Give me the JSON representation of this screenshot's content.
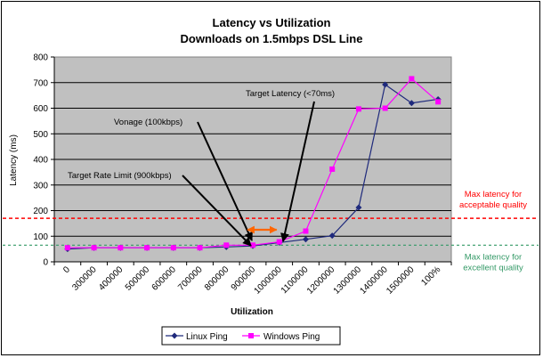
{
  "chart_data": {
    "type": "line",
    "title": "Latency vs Utilization",
    "subtitle": "Downloads on 1.5mbps DSL Line",
    "xlabel": "Utilization",
    "ylabel": "Latency (ms)",
    "ylim": [
      0,
      800
    ],
    "yticks": [
      "0",
      "100",
      "200",
      "300",
      "400",
      "500",
      "600",
      "700",
      "800"
    ],
    "categories": [
      "0",
      "300000",
      "400000",
      "500000",
      "600000",
      "700000",
      "800000",
      "900000",
      "1000000",
      "1100000",
      "1200000",
      "1300000",
      "1400000",
      "1500000",
      "100%"
    ],
    "grid": true,
    "legend_position": "bottom",
    "series": [
      {
        "name": "Linux Ping",
        "color": "#1F2A7C",
        "marker": "diamond",
        "values": [
          50,
          55,
          55,
          55,
          55,
          55,
          58,
          62,
          75,
          88,
          102,
          212,
          692,
          620,
          635
        ]
      },
      {
        "name": "Windows Ping",
        "color": "#FF00FF",
        "marker": "square",
        "values": [
          55,
          55,
          55,
          55,
          55,
          55,
          65,
          65,
          78,
          120,
          362,
          597,
          600,
          715,
          625
        ]
      }
    ],
    "reference_lines": [
      {
        "value": 170,
        "color": "#FF0000",
        "label_lines": [
          "Max latency for",
          "acceptable quality"
        ]
      },
      {
        "value": 65,
        "color": "#339966",
        "label_lines": [
          "Max latency for",
          "excellent quality"
        ]
      }
    ],
    "annotations": [
      {
        "text": "Target Latency (<70ms)"
      },
      {
        "text": "Vonage (100kbps)"
      },
      {
        "text": "Target Rate Limit (900kbps)"
      }
    ],
    "range_arrow_color": "#FF6600"
  }
}
